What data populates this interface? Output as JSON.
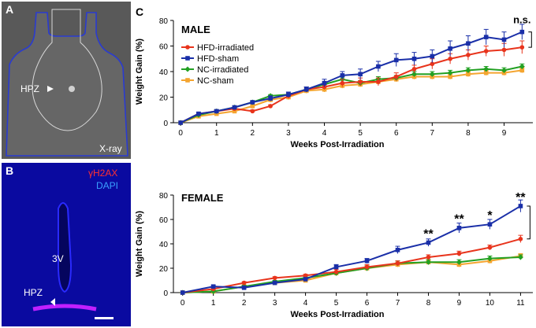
{
  "panel_a": {
    "letter": "A",
    "hpz": "HPZ",
    "xray": "X-ray"
  },
  "panel_b": {
    "letter": "B",
    "marker1": "γH2AX",
    "marker2": "DAPI",
    "v3": "3V",
    "hpz": "HPZ",
    "colors": {
      "marker1": "#ff3030",
      "marker2": "#3aa0ff"
    }
  },
  "panel_c": {
    "letter": "C"
  },
  "colors": {
    "hfd_irr": "#e8341c",
    "hfd_sham": "#1a2fa8",
    "nc_irr": "#22a022",
    "nc_sham": "#f4a530"
  },
  "chart_data": [
    {
      "type": "line",
      "title": "MALE",
      "xlabel": "Weeks Post-Irradiation",
      "ylabel": "Weight Gain (%)",
      "xlim": [
        -0.2,
        9.8
      ],
      "ylim": [
        0,
        80
      ],
      "xticks": [
        0,
        1,
        2,
        3,
        4,
        5,
        6,
        7,
        8,
        9
      ],
      "yticks": [
        0,
        20,
        40,
        60,
        80
      ],
      "x": [
        0,
        0.5,
        1,
        1.5,
        2,
        2.5,
        3,
        3.5,
        4,
        4.5,
        5,
        5.5,
        6,
        6.5,
        7,
        7.5,
        8,
        8.5,
        9,
        9.5
      ],
      "series": [
        {
          "name": "HFD-irradiated",
          "color_key": "hfd_irr",
          "marker": "circle",
          "values": [
            0,
            7,
            9,
            11,
            9,
            13,
            21,
            26,
            28,
            31,
            32,
            32,
            36,
            42,
            46,
            50,
            53,
            56,
            57,
            59
          ],
          "err": [
            0,
            1,
            1,
            1,
            1,
            1,
            2,
            2,
            2,
            3,
            3,
            3,
            3,
            3,
            4,
            4,
            4,
            4,
            5,
            5
          ]
        },
        {
          "name": "HFD-sham",
          "color_key": "hfd_sham",
          "marker": "square",
          "values": [
            0,
            7,
            9,
            12,
            16,
            19,
            22,
            26,
            31,
            37,
            38,
            44,
            49,
            50,
            52,
            58,
            62,
            67,
            65,
            71
          ],
          "err": [
            0,
            1,
            1,
            1,
            1,
            2,
            2,
            2,
            3,
            3,
            4,
            4,
            5,
            5,
            5,
            6,
            6,
            6,
            6,
            6
          ]
        },
        {
          "name": "NC-irradiated",
          "color_key": "nc_irr",
          "marker": "diamond",
          "values": [
            0,
            6,
            9,
            12,
            16,
            21,
            22,
            26,
            30,
            34,
            31,
            34,
            35,
            38,
            38,
            39,
            41,
            42,
            41,
            44
          ],
          "err": [
            0,
            1,
            1,
            1,
            1,
            1,
            2,
            2,
            2,
            2,
            2,
            2,
            2,
            2,
            2,
            2,
            2,
            2,
            2,
            2
          ]
        },
        {
          "name": "NC-sham",
          "color_key": "nc_sham",
          "marker": "square",
          "values": [
            0,
            5,
            7,
            9,
            13,
            18,
            20,
            25,
            26,
            29,
            30,
            32,
            34,
            36,
            36,
            36,
            38,
            39,
            39,
            41
          ],
          "err": [
            0,
            1,
            1,
            1,
            1,
            2,
            2,
            2,
            2,
            2,
            2,
            2,
            2,
            2,
            2,
            2,
            2,
            2,
            2,
            2
          ]
        }
      ],
      "annotations": [
        {
          "text": "n.s.",
          "at_x": 9.5,
          "at_y": 78
        }
      ],
      "legend": "top-left"
    },
    {
      "type": "line",
      "title": "FEMALE",
      "xlabel": "Weeks Post-Irradiation",
      "ylabel": "Weight Gain (%)",
      "xlim": [
        -0.3,
        11.4
      ],
      "ylim": [
        0,
        80
      ],
      "xticks": [
        0,
        1,
        2,
        3,
        4,
        5,
        6,
        7,
        8,
        9,
        10,
        11
      ],
      "yticks": [
        0,
        20,
        40,
        60,
        80
      ],
      "x": [
        0,
        1,
        2,
        3,
        4,
        5,
        6,
        7,
        8,
        9,
        10,
        11
      ],
      "series": [
        {
          "name": "HFD-irradiated",
          "color_key": "hfd_irr",
          "marker": "circle",
          "values": [
            0,
            3,
            8,
            12,
            14,
            17,
            21,
            24,
            29,
            32,
            37,
            44
          ],
          "err": [
            0,
            1,
            1,
            1,
            1,
            2,
            2,
            2,
            2,
            2,
            2,
            3
          ]
        },
        {
          "name": "HFD-sham",
          "color_key": "hfd_sham",
          "marker": "square",
          "values": [
            0,
            5,
            4,
            8,
            11,
            21,
            26,
            35,
            41,
            53,
            56,
            71
          ],
          "err": [
            0,
            1,
            1,
            1,
            1,
            2,
            2,
            3,
            3,
            4,
            4,
            5
          ]
        },
        {
          "name": "NC-irradiated",
          "color_key": "nc_irr",
          "marker": "diamond",
          "values": [
            0,
            1,
            5,
            9,
            12,
            16,
            20,
            24,
            25,
            25,
            28,
            29
          ],
          "err": [
            0,
            1,
            1,
            1,
            1,
            1,
            2,
            2,
            2,
            2,
            2,
            2
          ]
        },
        {
          "name": "NC-sham",
          "color_key": "nc_sham",
          "marker": "square",
          "values": [
            0,
            1,
            5,
            8,
            10,
            16,
            20,
            23,
            25,
            23,
            26,
            30
          ],
          "err": [
            0,
            1,
            1,
            1,
            1,
            1,
            2,
            2,
            2,
            2,
            2,
            2
          ]
        }
      ],
      "annotations": [
        {
          "text": "**",
          "at_x": 8,
          "at_y": 45
        },
        {
          "text": "**",
          "at_x": 9,
          "at_y": 57
        },
        {
          "text": "*",
          "at_x": 10,
          "at_y": 60
        },
        {
          "text": "**",
          "at_x": 11,
          "at_y": 75
        }
      ],
      "legend": "none"
    }
  ]
}
